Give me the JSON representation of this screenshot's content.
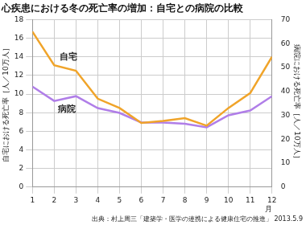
{
  "chart_data": {
    "type": "line",
    "title": "心疾患における冬の死亡率の増加：自宅との病院の比較",
    "source": "出典：村上周三「建築学・医学の連携による健康住宅の推進」 2013.5.9",
    "x_label": "月",
    "y_label": "自宅における死亡率［人／10万人］",
    "y2_label": "病院における死亡率［人／10万人］",
    "categories": [
      "1",
      "2",
      "3",
      "4",
      "5",
      "6",
      "7",
      "8",
      "9",
      "10",
      "11",
      "12"
    ],
    "series": [
      {
        "name": "自宅",
        "color": "#f0a42a",
        "marker": "none",
        "values": [
          16.7,
          13.1,
          12.5,
          9.5,
          8.5,
          6.9,
          7.1,
          7.4,
          6.6,
          8.5,
          10.1,
          14.0
        ]
      },
      {
        "name": "病院",
        "color": "#b07ee8",
        "marker": "none",
        "axis": "y2",
        "values": [
          42,
          36,
          38,
          33,
          31,
          27,
          27,
          26.5,
          25,
          30,
          32,
          38
        ]
      }
    ],
    "ylim": [
      0,
      18
    ],
    "yticks": [
      0,
      2,
      4,
      6,
      8,
      10,
      12,
      14,
      16,
      18
    ],
    "y2lim": [
      0,
      70
    ],
    "y2ticks": [
      0,
      10,
      20,
      30,
      40,
      50,
      60,
      70
    ],
    "grid": true
  }
}
